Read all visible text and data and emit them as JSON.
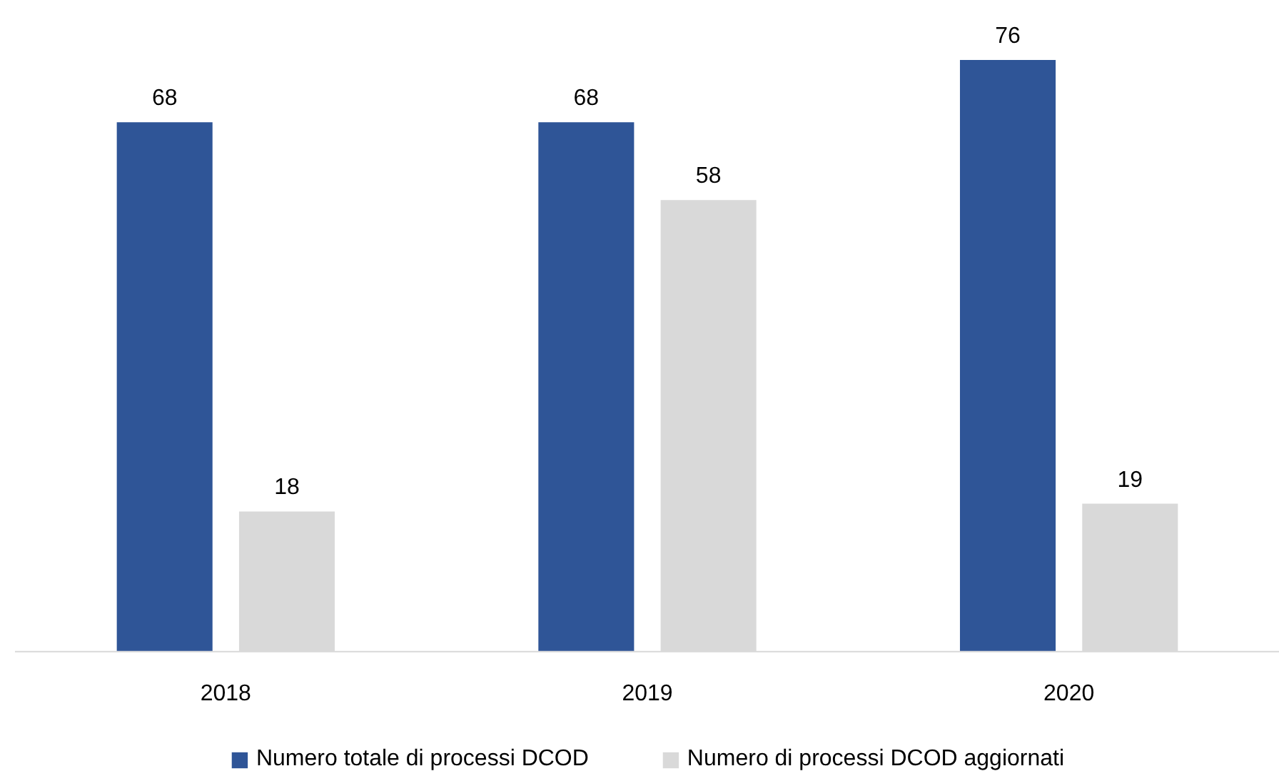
{
  "chart_data": {
    "type": "bar",
    "categories": [
      "2018",
      "2019",
      "2020"
    ],
    "series": [
      {
        "name": "Numero totale di processi DCOD",
        "color": "#2f5597",
        "values": [
          68,
          68,
          76
        ]
      },
      {
        "name": "Numero di processi DCOD aggiornati",
        "color": "#d9d9d9",
        "values": [
          18,
          58,
          19
        ]
      }
    ],
    "data_labels": true,
    "grid": false,
    "legend": "bottom"
  }
}
